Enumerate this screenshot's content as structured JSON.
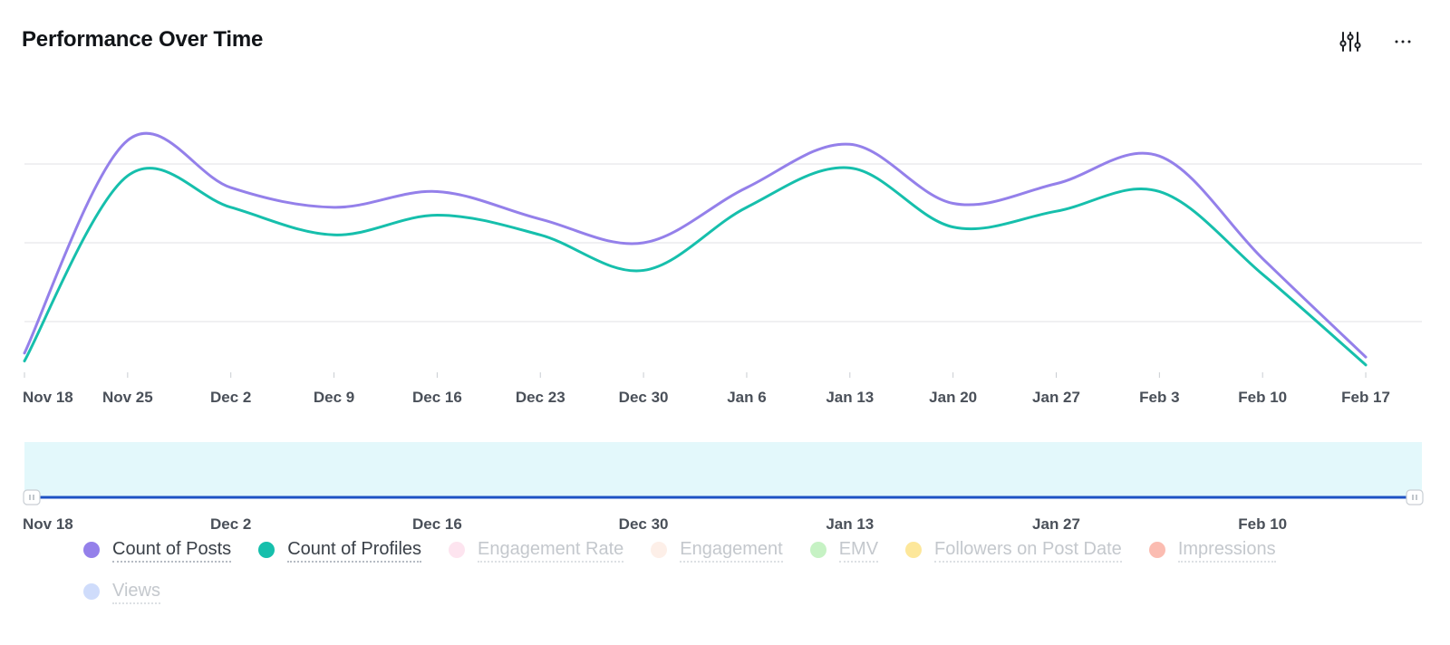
{
  "header": {
    "title": "Performance Over Time",
    "filter_icon": "sliders-icon",
    "more_icon": "more-horizontal-icon",
    "more_glyph": "···"
  },
  "chart_data": {
    "type": "line",
    "title": "Performance Over Time",
    "x": [
      "Nov 18",
      "Nov 25",
      "Dec 2",
      "Dec 9",
      "Dec 16",
      "Dec 23",
      "Dec 30",
      "Jan 6",
      "Jan 13",
      "Jan 20",
      "Jan 27",
      "Feb 3",
      "Feb 10",
      "Feb 17"
    ],
    "ylim": [
      0,
      270
    ],
    "grid": true,
    "y_gridlines": [
      70,
      170,
      270
    ],
    "series": [
      {
        "name": "Count of Posts",
        "color": "#9480ea",
        "values": [
          30,
          300,
          240,
          215,
          235,
          200,
          170,
          240,
          295,
          220,
          245,
          280,
          150,
          25
        ]
      },
      {
        "name": "Count of Profiles",
        "color": "#16bfac",
        "values": [
          20,
          255,
          215,
          180,
          205,
          180,
          135,
          215,
          265,
          190,
          210,
          235,
          130,
          15
        ]
      }
    ],
    "brush": {
      "ticks": [
        "Nov 18",
        "Dec 2",
        "Dec 16",
        "Dec 30",
        "Jan 13",
        "Jan 27",
        "Feb 10"
      ],
      "range": [
        "Nov 18",
        "Feb 17"
      ]
    },
    "legend_position": "bottom"
  },
  "legend": [
    {
      "label": "Count of Posts",
      "color": "#9480ea",
      "active": true
    },
    {
      "label": "Count of Profiles",
      "color": "#16bfac",
      "active": true
    },
    {
      "label": "Engagement Rate",
      "color": "#fde4ef",
      "active": false
    },
    {
      "label": "Engagement",
      "color": "#fdefe8",
      "active": false
    },
    {
      "label": "EMV",
      "color": "#c6f2c4",
      "active": false
    },
    {
      "label": "Followers on Post Date",
      "color": "#fde79a",
      "active": false
    },
    {
      "label": "Impressions",
      "color": "#fbbcb1",
      "active": false
    },
    {
      "label": "Views",
      "color": "#cfdcfb",
      "active": false
    }
  ]
}
